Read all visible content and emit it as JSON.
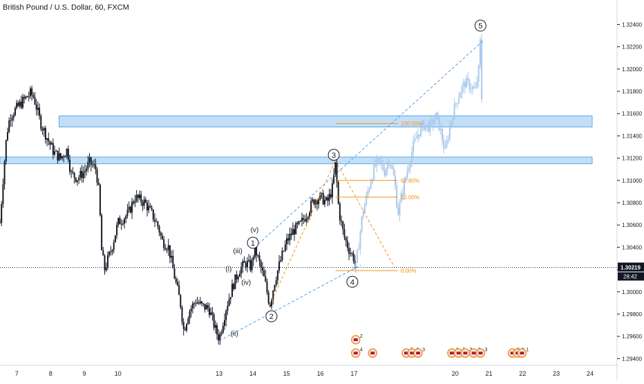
{
  "header": {
    "title": "British Pound / U.S. Dollar, 60, FXCM"
  },
  "colors": {
    "candle": "#131722",
    "projection": "#a9c8ec",
    "zone_fill": "#bcdcf7",
    "zone_stroke": "#4a9fe6",
    "channel": "#4a9fe6",
    "fib": "#f2911b",
    "axis_text": "#131722",
    "price_badge": "#131722",
    "event_ring": "#f2911b",
    "event_fill": "#e8eef8"
  },
  "chart_data": {
    "type": "candlestick",
    "title": "British Pound / U.S. Dollar, 60, FXCM",
    "ylim": [
      1.2934,
      1.3262
    ],
    "xlim": [
      6.5,
      24.8
    ],
    "x_ticks": [
      7,
      8,
      9,
      10,
      13,
      14,
      15,
      16,
      17,
      20,
      21,
      22,
      23,
      24
    ],
    "x_tick_labels": [
      "7",
      "8",
      "9",
      "10",
      "13",
      "14",
      "15",
      "16",
      "17",
      "20",
      "21",
      "22",
      "23",
      "24"
    ],
    "y_ticks": [
      1.324,
      1.322,
      1.32,
      1.318,
      1.316,
      1.314,
      1.312,
      1.31,
      1.308,
      1.306,
      1.304,
      1.302,
      1.3,
      1.298,
      1.296,
      1.294
    ],
    "y_tick_labels": [
      "1.32400",
      "1.32200",
      "1.32000",
      "1.31800",
      "1.31600",
      "1.31400",
      "1.31200",
      "1.31000",
      "1.30800",
      "1.30600",
      "1.30400",
      "1.30200",
      "1.30000",
      "1.29800",
      "1.29600",
      "1.29400"
    ],
    "current_price": {
      "value": 1.30219,
      "label": "1.30219",
      "countdown": "28:42"
    },
    "price_path": [
      [
        6.5,
        1.3062
      ],
      [
        6.6,
        1.3105
      ],
      [
        6.7,
        1.3142
      ],
      [
        6.8,
        1.3158
      ],
      [
        7.0,
        1.3165
      ],
      [
        7.2,
        1.3172
      ],
      [
        7.4,
        1.3178
      ],
      [
        7.5,
        1.3175
      ],
      [
        7.7,
        1.3152
      ],
      [
        7.9,
        1.3138
      ],
      [
        8.1,
        1.3125
      ],
      [
        8.3,
        1.312
      ],
      [
        8.5,
        1.3128
      ],
      [
        8.6,
        1.3106
      ],
      [
        8.8,
        1.3102
      ],
      [
        9.0,
        1.3108
      ],
      [
        9.15,
        1.3116
      ],
      [
        9.35,
        1.311
      ],
      [
        9.45,
        1.3085
      ],
      [
        9.5,
        1.304
      ],
      [
        9.6,
        1.302
      ],
      [
        9.8,
        1.3038
      ],
      [
        10.0,
        1.3062
      ],
      [
        10.3,
        1.307
      ],
      [
        10.5,
        1.3085
      ],
      [
        10.8,
        1.308
      ],
      [
        11.0,
        1.307
      ],
      [
        11.2,
        1.3058
      ],
      [
        11.3,
        1.3046
      ],
      [
        11.5,
        1.304
      ],
      [
        11.7,
        1.301
      ],
      [
        11.85,
        1.299
      ],
      [
        11.95,
        1.2965
      ],
      [
        12.1,
        1.2982
      ],
      [
        12.3,
        1.2992
      ],
      [
        12.5,
        1.2987
      ],
      [
        12.7,
        1.2985
      ],
      [
        12.9,
        1.2965
      ],
      [
        13.0,
        1.2958
      ],
      [
        13.2,
        1.2985
      ],
      [
        13.4,
        1.3005
      ],
      [
        13.6,
        1.302
      ],
      [
        13.8,
        1.3026
      ],
      [
        13.95,
        1.3022
      ],
      [
        14.05,
        1.304
      ],
      [
        14.15,
        1.303
      ],
      [
        14.35,
        1.301
      ],
      [
        14.5,
        1.2988
      ],
      [
        14.65,
        1.301
      ],
      [
        14.8,
        1.3026
      ],
      [
        15.0,
        1.3045
      ],
      [
        15.2,
        1.3055
      ],
      [
        15.4,
        1.306
      ],
      [
        15.6,
        1.307
      ],
      [
        15.8,
        1.3082
      ],
      [
        16.0,
        1.3085
      ],
      [
        16.2,
        1.308
      ],
      [
        16.35,
        1.3092
      ],
      [
        16.45,
        1.3115
      ],
      [
        16.55,
        1.3072
      ],
      [
        16.7,
        1.305
      ],
      [
        16.85,
        1.3038
      ],
      [
        17.0,
        1.303
      ],
      [
        17.05,
        1.3022
      ]
    ],
    "projection_path": [
      [
        17.05,
        1.3022
      ],
      [
        17.25,
        1.307
      ],
      [
        17.45,
        1.3095
      ],
      [
        17.6,
        1.3112
      ],
      [
        17.75,
        1.3118
      ],
      [
        17.9,
        1.3108
      ],
      [
        18.05,
        1.312
      ],
      [
        18.2,
        1.31
      ],
      [
        18.3,
        1.307
      ],
      [
        18.45,
        1.3092
      ],
      [
        18.6,
        1.3112
      ],
      [
        18.75,
        1.313
      ],
      [
        18.9,
        1.3142
      ],
      [
        19.05,
        1.315
      ],
      [
        19.25,
        1.3148
      ],
      [
        19.45,
        1.3158
      ],
      [
        19.6,
        1.314
      ],
      [
        19.7,
        1.3125
      ],
      [
        19.85,
        1.315
      ],
      [
        20.0,
        1.3168
      ],
      [
        20.15,
        1.318
      ],
      [
        20.3,
        1.3188
      ],
      [
        20.45,
        1.3185
      ],
      [
        20.6,
        1.318
      ],
      [
        20.7,
        1.32
      ],
      [
        20.75,
        1.323
      ],
      [
        20.8,
        1.315
      ]
    ],
    "zones": [
      {
        "from": 1.3148,
        "to": 1.3158,
        "x_start": 8.25,
        "x_end": 24.8
      },
      {
        "from": 1.3115,
        "to": 1.3121,
        "x_start": 6.5,
        "x_end": 24.8
      }
    ],
    "fib_levels": [
      {
        "value": 1.3151,
        "label": "100.00%"
      },
      {
        "value": 1.31,
        "label": "61.80%"
      },
      {
        "value": 1.3085,
        "label": "50.00%"
      },
      {
        "value": 1.3019,
        "label": "0.00%"
      }
    ],
    "fib_x_range": [
      16.45,
      18.3
    ],
    "channel_lines": [
      {
        "from": [
          14.05,
          1.304
        ],
        "to": [
          20.85,
          1.3226
        ]
      },
      {
        "from": [
          13.0,
          1.2956
        ],
        "to": [
          17.2,
          1.3024
        ]
      }
    ],
    "fib_diagonals": [
      {
        "from": [
          14.5,
          1.2988
        ],
        "to": [
          16.45,
          1.3118
        ]
      },
      {
        "from": [
          16.45,
          1.3118
        ],
        "to": [
          18.2,
          1.3022
        ]
      }
    ],
    "wave_labels": [
      {
        "text": "1",
        "circled": true,
        "x": 14.0,
        "y": 1.3044
      },
      {
        "text": "2",
        "circled": true,
        "x": 14.55,
        "y": 1.2978
      },
      {
        "text": "3",
        "circled": true,
        "x": 16.4,
        "y": 1.3123
      },
      {
        "text": "4",
        "circled": true,
        "x": 16.95,
        "y": 1.3009
      },
      {
        "text": "5",
        "circled": true,
        "x": 20.75,
        "y": 1.3239
      },
      {
        "text": "(i)",
        "circled": false,
        "x": 13.28,
        "y": 1.3021
      },
      {
        "text": "(ii)",
        "circled": false,
        "x": 13.45,
        "y": 1.2963
      },
      {
        "text": "(iii)",
        "circled": false,
        "x": 13.55,
        "y": 1.3037
      },
      {
        "text": "(iv)",
        "circled": false,
        "x": 13.8,
        "y": 1.3009
      },
      {
        "text": "(v)",
        "circled": false,
        "x": 14.05,
        "y": 1.3056
      }
    ],
    "event_markers": [
      {
        "x": 17.05,
        "y": 1.2957,
        "count": "2"
      },
      {
        "x": 17.05,
        "y": 1.2945,
        "count": "4"
      },
      {
        "x": 17.55,
        "y": 1.2945,
        "count": ""
      },
      {
        "x": 18.55,
        "y": 1.2945,
        "count": "5"
      },
      {
        "x": 18.72,
        "y": 1.2945,
        "count": "2"
      },
      {
        "x": 18.9,
        "y": 1.2945,
        "count": "3"
      },
      {
        "x": 19.9,
        "y": 1.2945,
        "count": "3"
      },
      {
        "x": 20.1,
        "y": 1.2945,
        "count": "5"
      },
      {
        "x": 20.3,
        "y": 1.2945,
        "count": "3"
      },
      {
        "x": 20.55,
        "y": 1.2945,
        "count": "2"
      },
      {
        "x": 20.75,
        "y": 1.2945,
        "count": "3"
      },
      {
        "x": 21.7,
        "y": 1.2945,
        "count": "3"
      },
      {
        "x": 21.85,
        "y": 1.2945,
        "count": "3"
      },
      {
        "x": 21.98,
        "y": 1.2945,
        "count": "1"
      }
    ]
  }
}
